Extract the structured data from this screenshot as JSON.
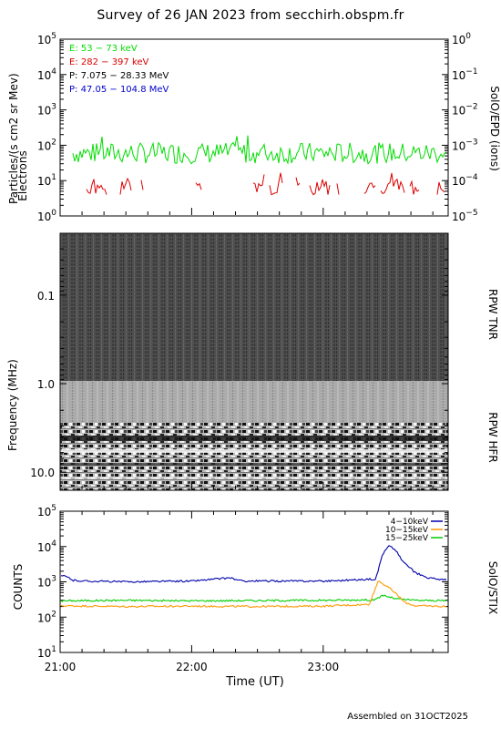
{
  "title": "Survey of 26 JAN 2023 from secchirh.obspm.fr",
  "footer": "Assembled on 31OCT2025",
  "chart_data": [
    {
      "type": "line",
      "id": "epd",
      "ylabel_line1": "Particles/(s cm2 sr Mev)",
      "ylabel_line2": "Electrons",
      "right_label": "SolO/EPD (ions)",
      "yscale": "log",
      "ylim": [
        1,
        100000
      ],
      "y_ticks": [
        {
          "v": 1,
          "base": "10",
          "exp": "0"
        },
        {
          "v": 10,
          "base": "10",
          "exp": "1"
        },
        {
          "v": 100,
          "base": "10",
          "exp": "2"
        },
        {
          "v": 1000,
          "base": "10",
          "exp": "3"
        },
        {
          "v": 10000,
          "base": "10",
          "exp": "4"
        },
        {
          "v": 100000,
          "base": "10",
          "exp": "5"
        }
      ],
      "y2_ticks": [
        {
          "v": 1,
          "base": "10",
          "exp": "−5"
        },
        {
          "v": 10,
          "base": "10",
          "exp": "−4"
        },
        {
          "v": 100,
          "base": "10",
          "exp": "−3"
        },
        {
          "v": 1000,
          "base": "10",
          "exp": "−2"
        },
        {
          "v": 10000,
          "base": "10",
          "exp": "−1"
        },
        {
          "v": 100000,
          "base": "10",
          "exp": "0"
        }
      ],
      "legend": [
        {
          "label": "E: 53 − 73 keV",
          "color": "#00dd00"
        },
        {
          "label": "E: 282 − 397 keV",
          "color": "#dd0000"
        },
        {
          "label": "P: 7.075 − 28.33 MeV",
          "color": "#000000"
        },
        {
          "label": "P: 47.05 − 104.8 MeV",
          "color": "#0000cc"
        }
      ],
      "series": [
        {
          "name": "E: 53 − 73 keV",
          "color": "#00dd00",
          "typical": 60,
          "min": 25,
          "max": 210
        },
        {
          "name": "E: 282 − 397 keV",
          "color": "#dd0000",
          "typical": 5,
          "min": 4,
          "max": 17
        }
      ]
    },
    {
      "type": "heatmap",
      "id": "rpw",
      "ylabel": "Frequency (MHz)",
      "yscale": "log",
      "ylim": [
        0.02,
        16
      ],
      "y_ticks": [
        "0.1",
        "1.0",
        "10.0"
      ],
      "right_labels": [
        "RPW TNR",
        "RPW HFR"
      ]
    },
    {
      "type": "line",
      "id": "stix",
      "ylabel": "COUNTS",
      "right_label": "SolO/STIX",
      "yscale": "log",
      "ylim": [
        10,
        100000
      ],
      "y_ticks": [
        {
          "v": 10,
          "base": "10",
          "exp": "1"
        },
        {
          "v": 100,
          "base": "10",
          "exp": "2"
        },
        {
          "v": 1000,
          "base": "10",
          "exp": "3"
        },
        {
          "v": 10000,
          "base": "10",
          "exp": "4"
        },
        {
          "v": 100000,
          "base": "10",
          "exp": "5"
        }
      ],
      "xlabel": "Time (UT)",
      "x_ticks": [
        "21:00",
        "22:00",
        "23:00"
      ],
      "xlim_hours": [
        21.0,
        23.95
      ],
      "legend": [
        {
          "label": "4−10keV",
          "color": "#0000aa"
        },
        {
          "label": "10−15keV",
          "color": "#ff9900"
        },
        {
          "label": "15−25keV",
          "color": "#00cc00"
        }
      ],
      "series": [
        {
          "name": "4−10keV",
          "color": "#0000aa",
          "x": [
            21.0,
            21.05,
            21.1,
            21.2,
            21.5,
            22.0,
            22.3,
            22.35,
            22.4,
            23.0,
            23.4,
            23.45,
            23.5,
            23.55,
            23.6,
            23.7,
            23.8,
            23.95
          ],
          "y": [
            1500,
            1400,
            1100,
            1050,
            1000,
            1050,
            1300,
            1100,
            1050,
            1050,
            1200,
            6000,
            10500,
            8000,
            4000,
            1800,
            1300,
            1100
          ]
        },
        {
          "name": "10−15keV",
          "color": "#ff9900",
          "x": [
            21.0,
            21.5,
            22.0,
            22.5,
            23.0,
            23.35,
            23.42,
            23.47,
            23.52,
            23.57,
            23.62,
            23.7,
            23.95
          ],
          "y": [
            210,
            200,
            205,
            200,
            205,
            230,
            1100,
            800,
            600,
            400,
            260,
            210,
            200
          ]
        },
        {
          "name": "15−25keV",
          "color": "#00cc00",
          "x": [
            21.0,
            21.5,
            22.0,
            22.5,
            23.0,
            23.4,
            23.45,
            23.55,
            23.7,
            23.95
          ],
          "y": [
            290,
            300,
            290,
            295,
            300,
            310,
            420,
            330,
            300,
            290
          ]
        }
      ]
    }
  ]
}
